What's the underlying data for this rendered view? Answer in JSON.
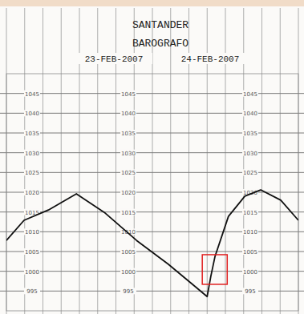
{
  "chart_data": {
    "type": "line",
    "title": "SANTANDER",
    "subtitle": "BAROGRAFO",
    "annotations": [
      "23-FEB-2007",
      "24-FEB-2007"
    ],
    "x": [
      0,
      2.9,
      6.9,
      11.5,
      16.1,
      21.4,
      26.6,
      30.6,
      33.0,
      33.6,
      34.3,
      36.5,
      39.2,
      41.8,
      45.1,
      48
    ],
    "values": [
      1007.8,
      1012.9,
      1015.5,
      1019.6,
      1014.9,
      1007.8,
      1001.8,
      996.7,
      993.6,
      998.7,
      1003.8,
      1013.9,
      1019.0,
      1020.6,
      1018.0,
      1012.9
    ],
    "color": "#111111",
    "xlim": [
      0,
      48
    ],
    "xticks": [
      0,
      3,
      6,
      9,
      12,
      15,
      18,
      21,
      24,
      27,
      30,
      33,
      36,
      39,
      42,
      45,
      48
    ],
    "ylim": [
      990,
      1050
    ],
    "yticks": [
      995,
      1000,
      1005,
      1010,
      1015,
      1020,
      1025,
      1030,
      1035,
      1040,
      1045
    ],
    "grid": true,
    "tick_labels": "y",
    "highlight": {
      "x": [
        32.2,
        36.3
      ],
      "y": [
        996.7,
        1004.2
      ],
      "color": "#e02020"
    }
  }
}
